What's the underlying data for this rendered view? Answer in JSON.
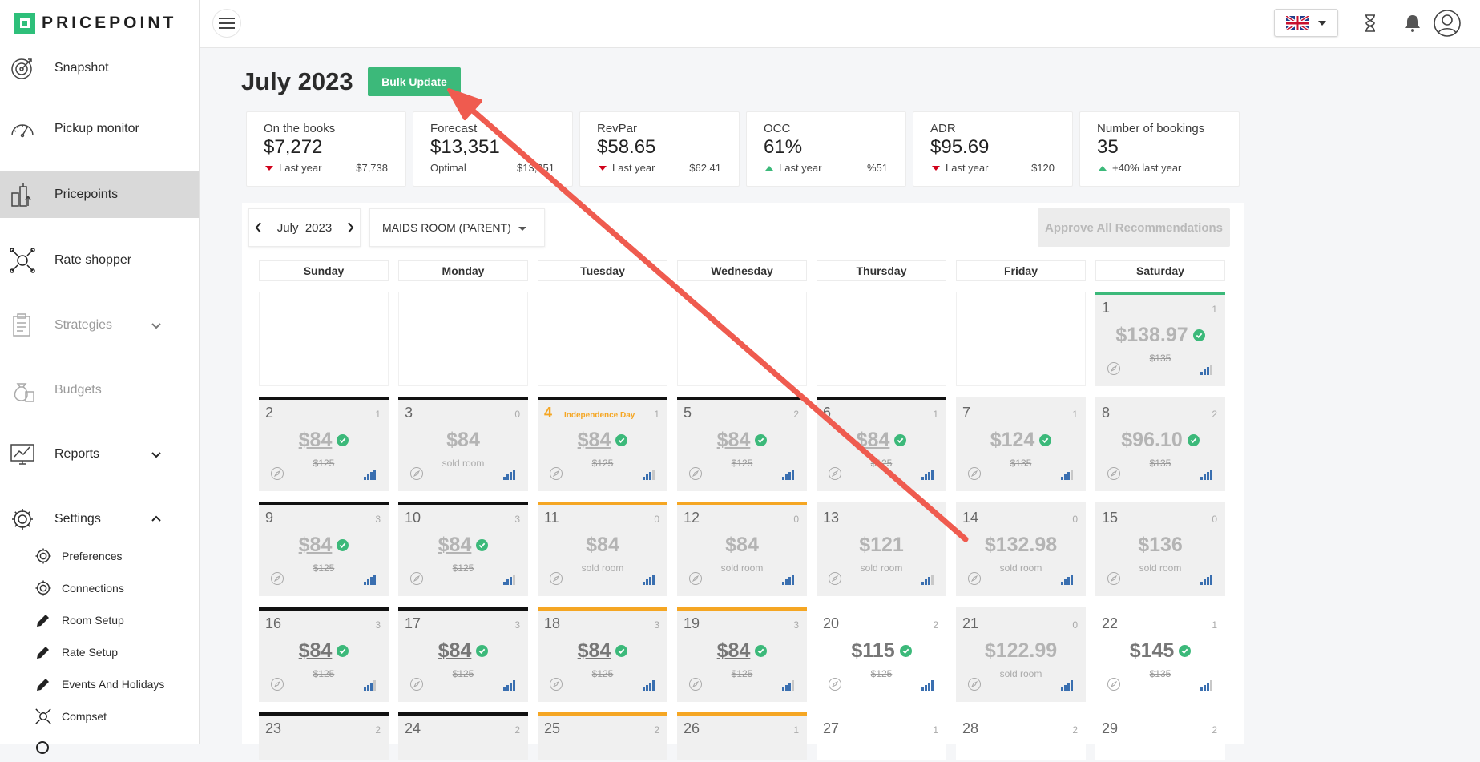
{
  "brand": {
    "name": "PRICEPOINT",
    "accent": "#3cb97a"
  },
  "sidebar": {
    "items": [
      {
        "label": "Snapshot",
        "icon": "target-icon"
      },
      {
        "label": "Pickup monitor",
        "icon": "speedometer-icon"
      },
      {
        "label": "Pricepoints",
        "icon": "pricepoints-icon"
      },
      {
        "label": "Rate shopper",
        "icon": "rate-shopper-icon"
      },
      {
        "label": "Strategies",
        "icon": "clipboard-icon"
      },
      {
        "label": "Budgets",
        "icon": "money-bag-icon"
      },
      {
        "label": "Reports",
        "icon": "monitor-chart-icon"
      },
      {
        "label": "Settings",
        "icon": "gear-icon"
      }
    ],
    "sub_items": [
      {
        "label": "Preferences",
        "icon": "gear-icon"
      },
      {
        "label": "Connections",
        "icon": "gear-icon"
      },
      {
        "label": "Room Setup",
        "icon": "pencil-icon"
      },
      {
        "label": "Rate Setup",
        "icon": "pencil-icon"
      },
      {
        "label": "Events And Holidays",
        "icon": "pencil-icon"
      },
      {
        "label": "Compset",
        "icon": "compset-icon"
      }
    ]
  },
  "header": {
    "title": "July 2023",
    "bulk_update": "Bulk Update"
  },
  "kpis": [
    {
      "label": "On the books",
      "value": "$7,272",
      "trend": "down",
      "foot": "Last year",
      "ref": "$7,738"
    },
    {
      "label": "Forecast",
      "value": "$13,351",
      "trend": "none",
      "foot": "Optimal",
      "ref": "$13,351"
    },
    {
      "label": "RevPar",
      "value": "$58.65",
      "trend": "down",
      "foot": "Last year",
      "ref": "$62.41"
    },
    {
      "label": "OCC",
      "value": "61%",
      "trend": "up",
      "foot": "Last year",
      "ref": "%51"
    },
    {
      "label": "ADR",
      "value": "$95.69",
      "trend": "down",
      "foot": "Last year",
      "ref": "$120"
    },
    {
      "label": "Number of bookings",
      "value": "35",
      "trend": "up",
      "foot": "+40% last year",
      "ref": ""
    }
  ],
  "calendar": {
    "month": "July",
    "year": "2023",
    "room": "MAIDS ROOM (PARENT)",
    "approve_all": "Approve All Recommendations",
    "days": [
      "Sunday",
      "Monday",
      "Tuesday",
      "Wednesday",
      "Thursday",
      "Friday",
      "Saturday"
    ],
    "cells": [
      {
        "day": "1",
        "count": "1",
        "price": "$138.97",
        "sub": "$135",
        "strike": true,
        "check": true,
        "line": "green",
        "bg": "grey",
        "dark": false,
        "ul": false
      },
      {
        "day": "2",
        "count": "1",
        "price": "$84",
        "sub": "$125",
        "strike": true,
        "check": true,
        "line": "black",
        "bg": "grey",
        "dark": false,
        "ul": true
      },
      {
        "day": "3",
        "count": "0",
        "price": "$84",
        "sub": "sold room",
        "strike": false,
        "check": false,
        "line": "black",
        "bg": "grey",
        "dark": false,
        "ul": false
      },
      {
        "day": "4",
        "count": "1",
        "holiday": "Independence Day",
        "price": "$84",
        "sub": "$125",
        "strike": true,
        "check": true,
        "line": "black",
        "bg": "grey",
        "dark": false,
        "ul": true
      },
      {
        "day": "5",
        "count": "2",
        "price": "$84",
        "sub": "$125",
        "strike": true,
        "check": true,
        "line": "black",
        "bg": "grey",
        "dark": false,
        "ul": true
      },
      {
        "day": "6",
        "count": "1",
        "price": "$84",
        "sub": "$125",
        "strike": true,
        "check": true,
        "line": "black",
        "bg": "grey",
        "dark": false,
        "ul": true
      },
      {
        "day": "7",
        "count": "1",
        "price": "$124",
        "sub": "$135",
        "strike": true,
        "check": true,
        "line": "none",
        "bg": "grey",
        "dark": false,
        "ul": false
      },
      {
        "day": "8",
        "count": "2",
        "price": "$96.10",
        "sub": "$135",
        "strike": true,
        "check": true,
        "line": "none",
        "bg": "grey",
        "dark": false,
        "ul": false
      },
      {
        "day": "9",
        "count": "3",
        "price": "$84",
        "sub": "$125",
        "strike": true,
        "check": true,
        "line": "black",
        "bg": "grey",
        "dark": false,
        "ul": true
      },
      {
        "day": "10",
        "count": "3",
        "price": "$84",
        "sub": "$125",
        "strike": true,
        "check": true,
        "line": "black",
        "bg": "grey",
        "dark": false,
        "ul": true
      },
      {
        "day": "11",
        "count": "0",
        "price": "$84",
        "sub": "sold room",
        "strike": false,
        "check": false,
        "line": "orange",
        "bg": "grey",
        "dark": false,
        "ul": false
      },
      {
        "day": "12",
        "count": "0",
        "price": "$84",
        "sub": "sold room",
        "strike": false,
        "check": false,
        "line": "orange",
        "bg": "grey",
        "dark": false,
        "ul": false
      },
      {
        "day": "13",
        "count": "",
        "price": "$121",
        "sub": "sold room",
        "strike": false,
        "check": false,
        "line": "none",
        "bg": "grey",
        "dark": false,
        "ul": false
      },
      {
        "day": "14",
        "count": "0",
        "price": "$132.98",
        "sub": "sold room",
        "strike": false,
        "check": false,
        "line": "none",
        "bg": "grey",
        "dark": false,
        "ul": false
      },
      {
        "day": "15",
        "count": "0",
        "price": "$136",
        "sub": "sold room",
        "strike": false,
        "check": false,
        "line": "none",
        "bg": "grey",
        "dark": false,
        "ul": false
      },
      {
        "day": "16",
        "count": "3",
        "price": "$84",
        "sub": "$125",
        "strike": true,
        "check": true,
        "line": "black",
        "bg": "grey",
        "dark": true,
        "ul": true
      },
      {
        "day": "17",
        "count": "3",
        "price": "$84",
        "sub": "$125",
        "strike": true,
        "check": true,
        "line": "black",
        "bg": "grey",
        "dark": true,
        "ul": true
      },
      {
        "day": "18",
        "count": "3",
        "price": "$84",
        "sub": "$125",
        "strike": true,
        "check": true,
        "line": "orange",
        "bg": "grey",
        "dark": true,
        "ul": true
      },
      {
        "day": "19",
        "count": "3",
        "price": "$84",
        "sub": "$125",
        "strike": true,
        "check": true,
        "line": "orange",
        "bg": "grey",
        "dark": true,
        "ul": true
      },
      {
        "day": "20",
        "count": "2",
        "price": "$115",
        "sub": "$125",
        "strike": true,
        "check": true,
        "line": "none",
        "bg": "white",
        "dark": true,
        "ul": false
      },
      {
        "day": "21",
        "count": "0",
        "price": "$122.99",
        "sub": "sold room",
        "strike": false,
        "check": false,
        "line": "none",
        "bg": "grey",
        "dark": false,
        "ul": false
      },
      {
        "day": "22",
        "count": "1",
        "price": "$145",
        "sub": "$135",
        "strike": true,
        "check": true,
        "line": "none",
        "bg": "white",
        "dark": true,
        "ul": false
      },
      {
        "day": "23",
        "count": "2",
        "price": "",
        "sub": "",
        "strike": false,
        "check": false,
        "line": "black",
        "bg": "grey",
        "dark": false,
        "ul": false
      },
      {
        "day": "24",
        "count": "2",
        "price": "",
        "sub": "",
        "strike": false,
        "check": false,
        "line": "black",
        "bg": "grey",
        "dark": false,
        "ul": false
      },
      {
        "day": "25",
        "count": "2",
        "price": "",
        "sub": "",
        "strike": false,
        "check": false,
        "line": "orange",
        "bg": "grey",
        "dark": false,
        "ul": false
      },
      {
        "day": "26",
        "count": "1",
        "price": "",
        "sub": "",
        "strike": false,
        "check": false,
        "line": "orange",
        "bg": "grey",
        "dark": false,
        "ul": false
      },
      {
        "day": "27",
        "count": "1",
        "price": "",
        "sub": "",
        "strike": false,
        "check": false,
        "line": "none",
        "bg": "white",
        "dark": false,
        "ul": false
      },
      {
        "day": "28",
        "count": "2",
        "price": "",
        "sub": "",
        "strike": false,
        "check": false,
        "line": "none",
        "bg": "white",
        "dark": false,
        "ul": false
      },
      {
        "day": "29",
        "count": "2",
        "price": "",
        "sub": "",
        "strike": false,
        "check": false,
        "line": "none",
        "bg": "white",
        "dark": false,
        "ul": false
      }
    ]
  },
  "colors": {
    "green": "#3cb97a",
    "orange": "#f5a623",
    "black": "#111111",
    "arrow": "#ef5b4f"
  }
}
